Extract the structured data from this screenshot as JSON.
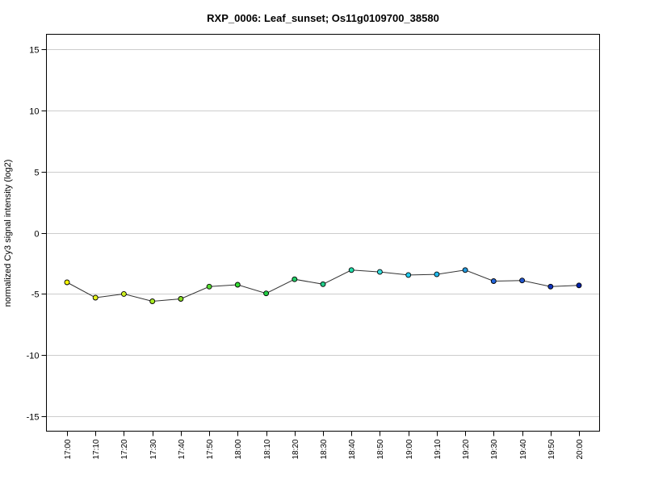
{
  "chart_data": {
    "type": "line",
    "title": "RXP_0006: Leaf_sunset; Os11g0109700_38580",
    "xlabel": "",
    "ylabel": "normalized Cy3 signal intensity (log2)",
    "categories": [
      "17:00",
      "17:10",
      "17:20",
      "17:30",
      "17:40",
      "17:50",
      "18:00",
      "18:10",
      "18:20",
      "18:30",
      "18:40",
      "18:50",
      "19:00",
      "19:10",
      "19:20",
      "19:30",
      "19:40",
      "19:50",
      "20:00"
    ],
    "values": [
      -4.05,
      -5.3,
      -5.0,
      -5.6,
      -5.4,
      -4.4,
      -4.25,
      -4.95,
      -3.8,
      -4.2,
      -3.05,
      -3.2,
      -3.45,
      -3.4,
      -3.05,
      -3.95,
      -3.9,
      -4.4,
      -4.3
    ],
    "point_colors": [
      "#ffff00",
      "#e6f51a",
      "#ccee22",
      "#aaee22",
      "#88dd22",
      "#55dd33",
      "#33dd33",
      "#22cc44",
      "#22cc66",
      "#22cc88",
      "#22ddaa",
      "#33dddd",
      "#22ccee",
      "#22bbee",
      "#2299dd",
      "#2266dd",
      "#2255cc",
      "#1133bb",
      "#0022aa"
    ],
    "yticks": [
      15,
      10,
      5,
      0,
      -5,
      -10,
      -15
    ],
    "ylim": [
      -16.2,
      16.2
    ],
    "grid": true,
    "line_color": "#333333"
  }
}
